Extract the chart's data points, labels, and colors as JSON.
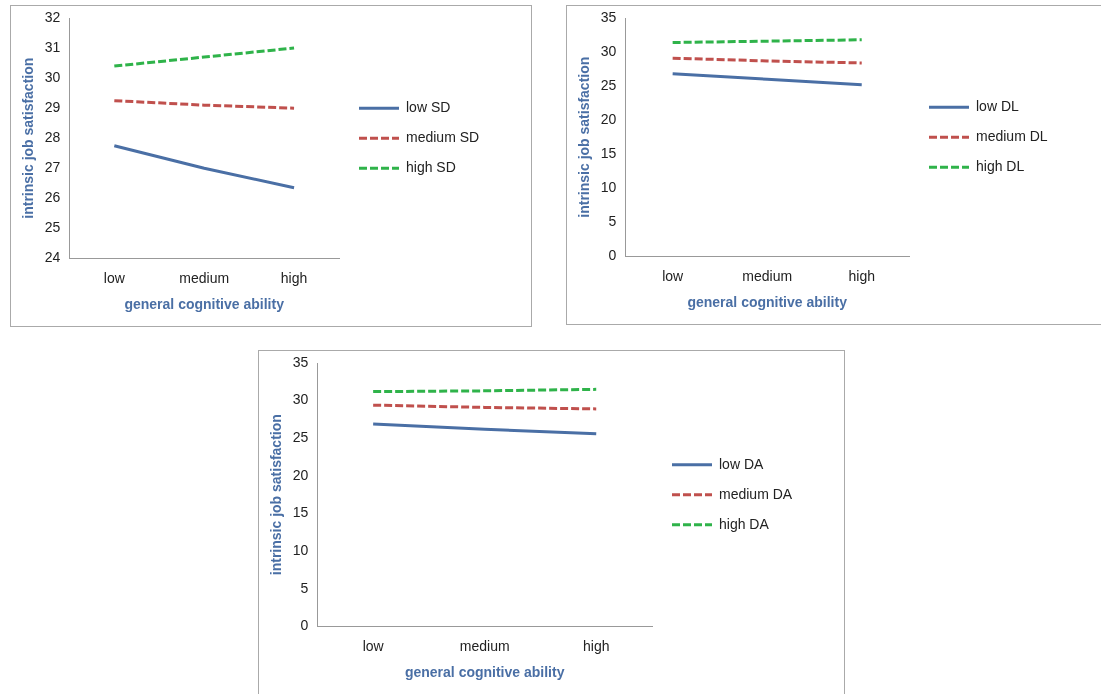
{
  "chart_data": [
    {
      "type": "line",
      "xlabel": "general cognitive ability",
      "ylabel": "intrinsic job satisfaction",
      "categories": [
        "low",
        "medium",
        "high"
      ],
      "ylim": [
        24,
        32
      ],
      "yticks": [
        24,
        25,
        26,
        27,
        28,
        29,
        30,
        31,
        32
      ],
      "grid": false,
      "legend": "right",
      "marker": "none",
      "series": [
        {
          "name": "low SD",
          "color": "#4a6fa5",
          "line_style": "solid",
          "values": [
            27.75,
            27.0,
            26.35
          ]
        },
        {
          "name": "medium SD",
          "color": "#c0504d",
          "line_style": "dashed",
          "values": [
            29.25,
            29.1,
            29.0
          ]
        },
        {
          "name": "high SD",
          "color": "#2fb34a",
          "line_style": "dashed",
          "values": [
            30.4,
            30.7,
            31.0
          ]
        }
      ]
    },
    {
      "type": "line",
      "xlabel": "general cognitive ability",
      "ylabel": "intrinsic job satisfaction",
      "categories": [
        "low",
        "medium",
        "high"
      ],
      "ylim": [
        0,
        35
      ],
      "yticks": [
        0,
        5,
        10,
        15,
        20,
        25,
        30,
        35
      ],
      "grid": false,
      "legend": "right",
      "marker": "none",
      "series": [
        {
          "name": "low DL",
          "color": "#4a6fa5",
          "line_style": "solid",
          "values": [
            26.8,
            26.0,
            25.2
          ]
        },
        {
          "name": "medium DL",
          "color": "#c0504d",
          "line_style": "dashed",
          "values": [
            29.1,
            28.7,
            28.4
          ]
        },
        {
          "name": "high DL",
          "color": "#2fb34a",
          "line_style": "dashed",
          "values": [
            31.4,
            31.6,
            31.8
          ]
        }
      ]
    },
    {
      "type": "line",
      "xlabel": "general cognitive ability",
      "ylabel": "intrinsic job satisfaction",
      "categories": [
        "low",
        "medium",
        "high"
      ],
      "ylim": [
        0,
        35
      ],
      "yticks": [
        0,
        5,
        10,
        15,
        20,
        25,
        30,
        35
      ],
      "grid": false,
      "legend": "right",
      "marker": "none",
      "series": [
        {
          "name": "low DA",
          "color": "#4a6fa5",
          "line_style": "solid",
          "values": [
            26.9,
            26.2,
            25.6
          ]
        },
        {
          "name": "medium DA",
          "color": "#c0504d",
          "line_style": "dashed",
          "values": [
            29.4,
            29.1,
            28.9
          ]
        },
        {
          "name": "high DA",
          "color": "#2fb34a",
          "line_style": "dashed",
          "values": [
            31.2,
            31.3,
            31.5
          ]
        }
      ]
    }
  ]
}
